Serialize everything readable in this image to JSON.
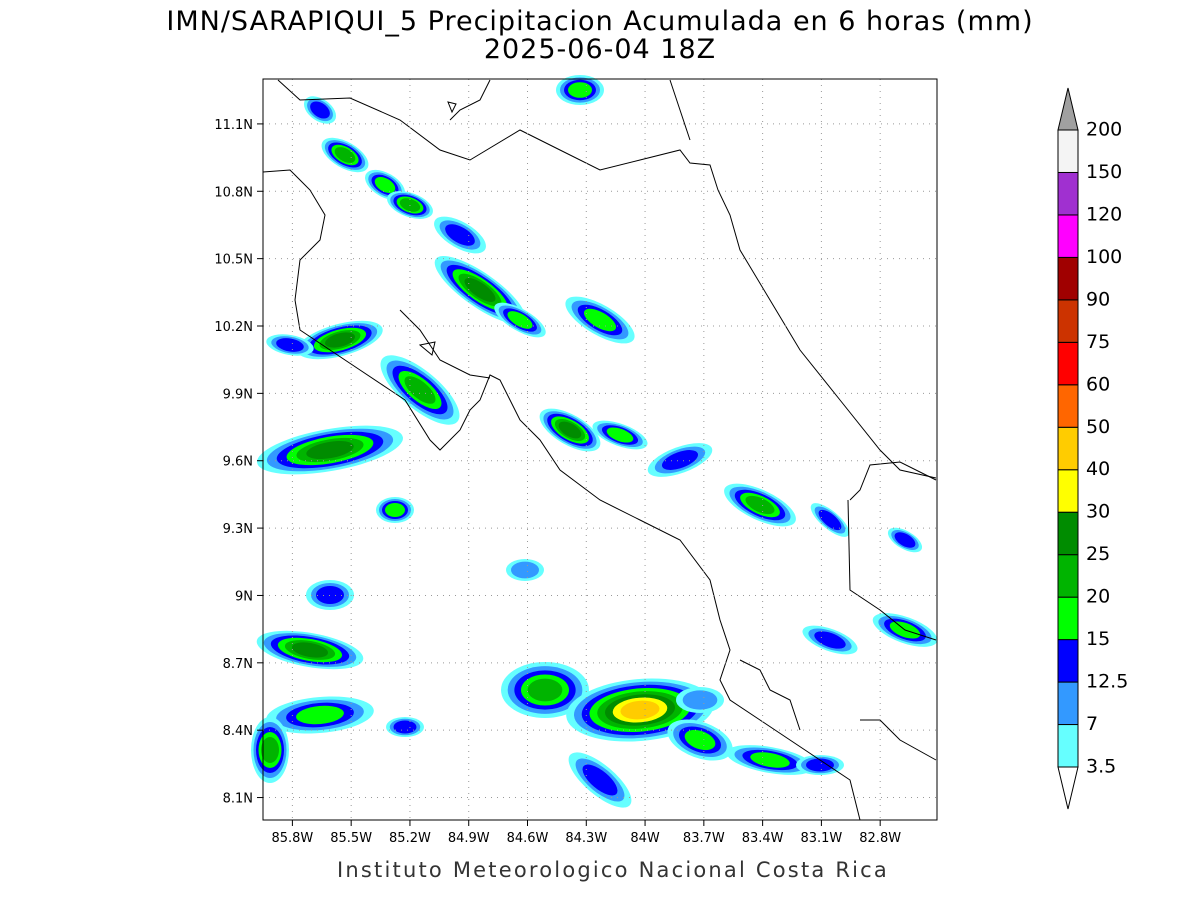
{
  "map": {
    "title": "IMN/SARAPIQUI_5 Precipitacion Acumulada en 6 horas (mm)",
    "subtitle": "2025-06-04 18Z",
    "footer": "Instituto Meteorologico Nacional Costa Rica",
    "xlim": [
      -85.95,
      -82.51
    ],
    "ylim": [
      8.0,
      11.3
    ],
    "xticks": [
      {
        "value": -85.8,
        "label": "85.8W"
      },
      {
        "value": -85.5,
        "label": "85.5W"
      },
      {
        "value": -85.2,
        "label": "85.2W"
      },
      {
        "value": -84.9,
        "label": "84.9W"
      },
      {
        "value": -84.6,
        "label": "84.6W"
      },
      {
        "value": -84.3,
        "label": "84.3W"
      },
      {
        "value": -84.0,
        "label": "84W"
      },
      {
        "value": -83.7,
        "label": "83.7W"
      },
      {
        "value": -83.4,
        "label": "83.4W"
      },
      {
        "value": -83.1,
        "label": "83.1W"
      },
      {
        "value": -82.8,
        "label": "82.8W"
      }
    ],
    "yticks": [
      {
        "value": 8.1,
        "label": "8.1N"
      },
      {
        "value": 8.4,
        "label": "8.4N"
      },
      {
        "value": 8.7,
        "label": "8.7N"
      },
      {
        "value": 9.0,
        "label": "9N"
      },
      {
        "value": 9.3,
        "label": "9.3N"
      },
      {
        "value": 9.6,
        "label": "9.6N"
      },
      {
        "value": 9.9,
        "label": "9.9N"
      },
      {
        "value": 10.2,
        "label": "10.2N"
      },
      {
        "value": 10.5,
        "label": "10.5N"
      },
      {
        "value": 10.8,
        "label": "10.8N"
      },
      {
        "value": 11.1,
        "label": "11.1N"
      }
    ],
    "grid": true,
    "colorbar": {
      "levels": [
        3.5,
        7,
        12.5,
        15,
        20,
        25,
        30,
        40,
        50,
        60,
        75,
        90,
        100,
        120,
        150,
        200
      ],
      "colors": [
        "#66ffff",
        "#3399ff",
        "#0000ff",
        "#00ff00",
        "#00b400",
        "#008c00",
        "#ffff00",
        "#ffcc00",
        "#ff6600",
        "#ff0000",
        "#cc3300",
        "#a00000",
        "#ff00ff",
        "#a030d0",
        "#f4f4f4"
      ],
      "under_color": "#ffffff",
      "over_color": "#a0a0a0"
    }
  }
}
